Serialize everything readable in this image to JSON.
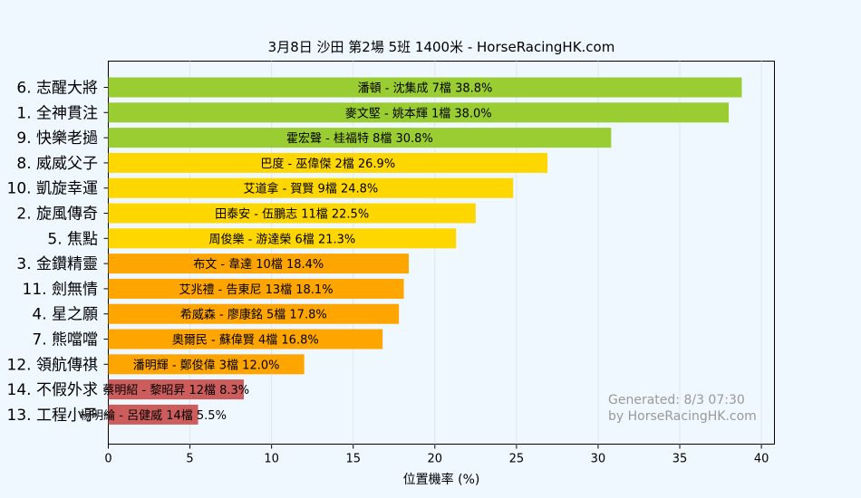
{
  "chart_data": {
    "type": "bar",
    "orientation": "horizontal",
    "title": "3月8日  沙田  第2場  5班  1400米 - HorseRacingHK.com",
    "xlabel": "位置機率 (%)",
    "ylabel": "",
    "xlim": [
      0,
      40.8
    ],
    "xticks": [
      0,
      5,
      10,
      15,
      20,
      25,
      30,
      35,
      40
    ],
    "grid": "vertical",
    "categories": [
      "6. 志醒大將",
      "1. 全神貫注",
      "9. 快樂老撾",
      "8. 威威父子",
      "10. 凱旋幸運",
      "2. 旋風傳奇",
      "5. 焦點",
      "3. 金鑽精靈",
      "11. 劍無情",
      "4. 星之願",
      "7. 熊噹噹",
      "12. 領航傳祺",
      "14. 不假外求",
      "13. 工程小子"
    ],
    "values": [
      38.8,
      38.0,
      30.8,
      26.9,
      24.8,
      22.5,
      21.3,
      18.4,
      18.1,
      17.8,
      16.8,
      12.0,
      8.3,
      5.5
    ],
    "bar_labels": [
      "潘頓 - 沈集成 7檔  38.8%",
      "麥文堅 - 姚本輝 1檔  38.0%",
      "霍宏聲 - 桂福特 8檔  30.8%",
      "巴度 - 巫偉傑 2檔  26.9%",
      "艾道拿 - 賀賢 9檔  24.8%",
      "田泰安 - 伍鵬志 11檔  22.5%",
      "周俊樂 - 游達榮 6檔  21.3%",
      "布文 - 韋達 10檔  18.4%",
      "艾兆禮 - 告東尼 13檔  18.1%",
      "希威森 - 廖康銘 5檔  17.8%",
      "奧爾民 - 蘇偉賢 4檔  16.8%",
      "潘明輝 - 鄭俊偉 3檔  12.0%",
      "蔡明紹 - 黎昭昇 12檔  8.3%",
      "楊明綸 - 呂健威 14檔  5.5%"
    ],
    "bar_colors": [
      "#9acd32",
      "#9acd32",
      "#9acd32",
      "#ffd700",
      "#ffd700",
      "#ffd700",
      "#ffd700",
      "#ffa500",
      "#ffa500",
      "#ffa500",
      "#ffa500",
      "#ffa500",
      "#cd5c5c",
      "#cd5c5c"
    ],
    "watermark": [
      "Generated: 8/3 07:30",
      "by HorseRacingHK.com"
    ]
  }
}
